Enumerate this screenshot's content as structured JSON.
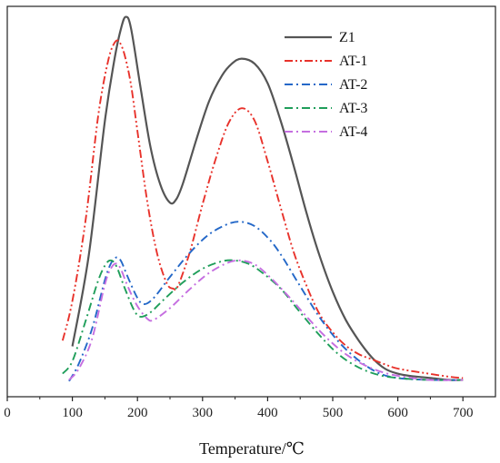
{
  "chart_data": {
    "type": "line",
    "xlabel": "Temperature/℃",
    "ylabel": "",
    "xlim": [
      0,
      750
    ],
    "ylim": [
      0,
      1.0
    ],
    "xticks": [
      0,
      100,
      200,
      300,
      400,
      500,
      600,
      700
    ],
    "grid": false,
    "legend_position": "top-right",
    "series": [
      {
        "name": "Z1",
        "color": "#555555",
        "dash": "solid",
        "x": [
          100,
          125,
          150,
          165,
          175,
          182,
          190,
          205,
          220,
          235,
          250,
          260,
          270,
          290,
          310,
          330,
          345,
          360,
          380,
          400,
          420,
          440,
          460,
          480,
          500,
          520,
          540,
          560,
          580,
          600,
          620,
          650,
          680,
          700
        ],
        "y": [
          0.129,
          0.36,
          0.707,
          0.867,
          0.945,
          0.973,
          0.945,
          0.789,
          0.64,
          0.544,
          0.497,
          0.507,
          0.547,
          0.656,
          0.757,
          0.823,
          0.853,
          0.866,
          0.853,
          0.803,
          0.707,
          0.592,
          0.469,
          0.36,
          0.269,
          0.197,
          0.144,
          0.101,
          0.072,
          0.059,
          0.053,
          0.048,
          0.043,
          0.043
        ]
      },
      {
        "name": "AT-1",
        "color": "#e8322b",
        "dash": "dash-dot-dot",
        "x": [
          85,
          100,
          120,
          140,
          155,
          165,
          172,
          180,
          190,
          200,
          215,
          230,
          245,
          255,
          262,
          280,
          300,
          320,
          340,
          360,
          380,
          400,
          420,
          440,
          460,
          480,
          500,
          520,
          540,
          560,
          580,
          600,
          640,
          680,
          700
        ],
        "y": [
          0.144,
          0.245,
          0.448,
          0.723,
          0.861,
          0.907,
          0.909,
          0.877,
          0.8,
          0.68,
          0.501,
          0.368,
          0.291,
          0.277,
          0.283,
          0.368,
          0.493,
          0.608,
          0.701,
          0.739,
          0.707,
          0.603,
          0.485,
          0.371,
          0.283,
          0.211,
          0.165,
          0.131,
          0.109,
          0.096,
          0.083,
          0.072,
          0.061,
          0.051,
          0.048
        ]
      },
      {
        "name": "AT-2",
        "color": "#2468c8",
        "dash": "dash-dot",
        "x": [
          95,
          110,
          130,
          150,
          160,
          168,
          175,
          185,
          200,
          210,
          225,
          250,
          280,
          310,
          340,
          360,
          380,
          400,
          420,
          450,
          480,
          510,
          540,
          570,
          600,
          650,
          700
        ],
        "y": [
          0.04,
          0.085,
          0.173,
          0.299,
          0.344,
          0.357,
          0.347,
          0.307,
          0.253,
          0.237,
          0.253,
          0.307,
          0.368,
          0.416,
          0.443,
          0.448,
          0.437,
          0.408,
          0.365,
          0.283,
          0.203,
          0.139,
          0.093,
          0.061,
          0.048,
          0.043,
          0.043
        ]
      },
      {
        "name": "AT-3",
        "color": "#1f9e5a",
        "dash": "dash-dot",
        "x": [
          85,
          100,
          120,
          140,
          152,
          160,
          168,
          180,
          195,
          205,
          220,
          240,
          270,
          300,
          330,
          350,
          370,
          390,
          420,
          450,
          480,
          510,
          540,
          570,
          600,
          650,
          700
        ],
        "y": [
          0.059,
          0.091,
          0.192,
          0.299,
          0.341,
          0.349,
          0.333,
          0.28,
          0.221,
          0.205,
          0.216,
          0.248,
          0.293,
          0.328,
          0.347,
          0.349,
          0.341,
          0.32,
          0.277,
          0.216,
          0.157,
          0.107,
          0.075,
          0.056,
          0.048,
          0.043,
          0.043
        ]
      },
      {
        "name": "AT-4",
        "color": "#c56ee0",
        "dash": "dash-dot",
        "x": [
          95,
          110,
          130,
          150,
          160,
          168,
          175,
          185,
          200,
          215,
          225,
          250,
          280,
          310,
          340,
          360,
          380,
          400,
          430,
          460,
          490,
          520,
          550,
          580,
          610,
          650,
          700
        ],
        "y": [
          0.043,
          0.072,
          0.147,
          0.288,
          0.331,
          0.341,
          0.325,
          0.283,
          0.232,
          0.2,
          0.197,
          0.227,
          0.275,
          0.317,
          0.344,
          0.349,
          0.339,
          0.312,
          0.261,
          0.205,
          0.152,
          0.109,
          0.08,
          0.061,
          0.051,
          0.043,
          0.043
        ]
      }
    ]
  }
}
